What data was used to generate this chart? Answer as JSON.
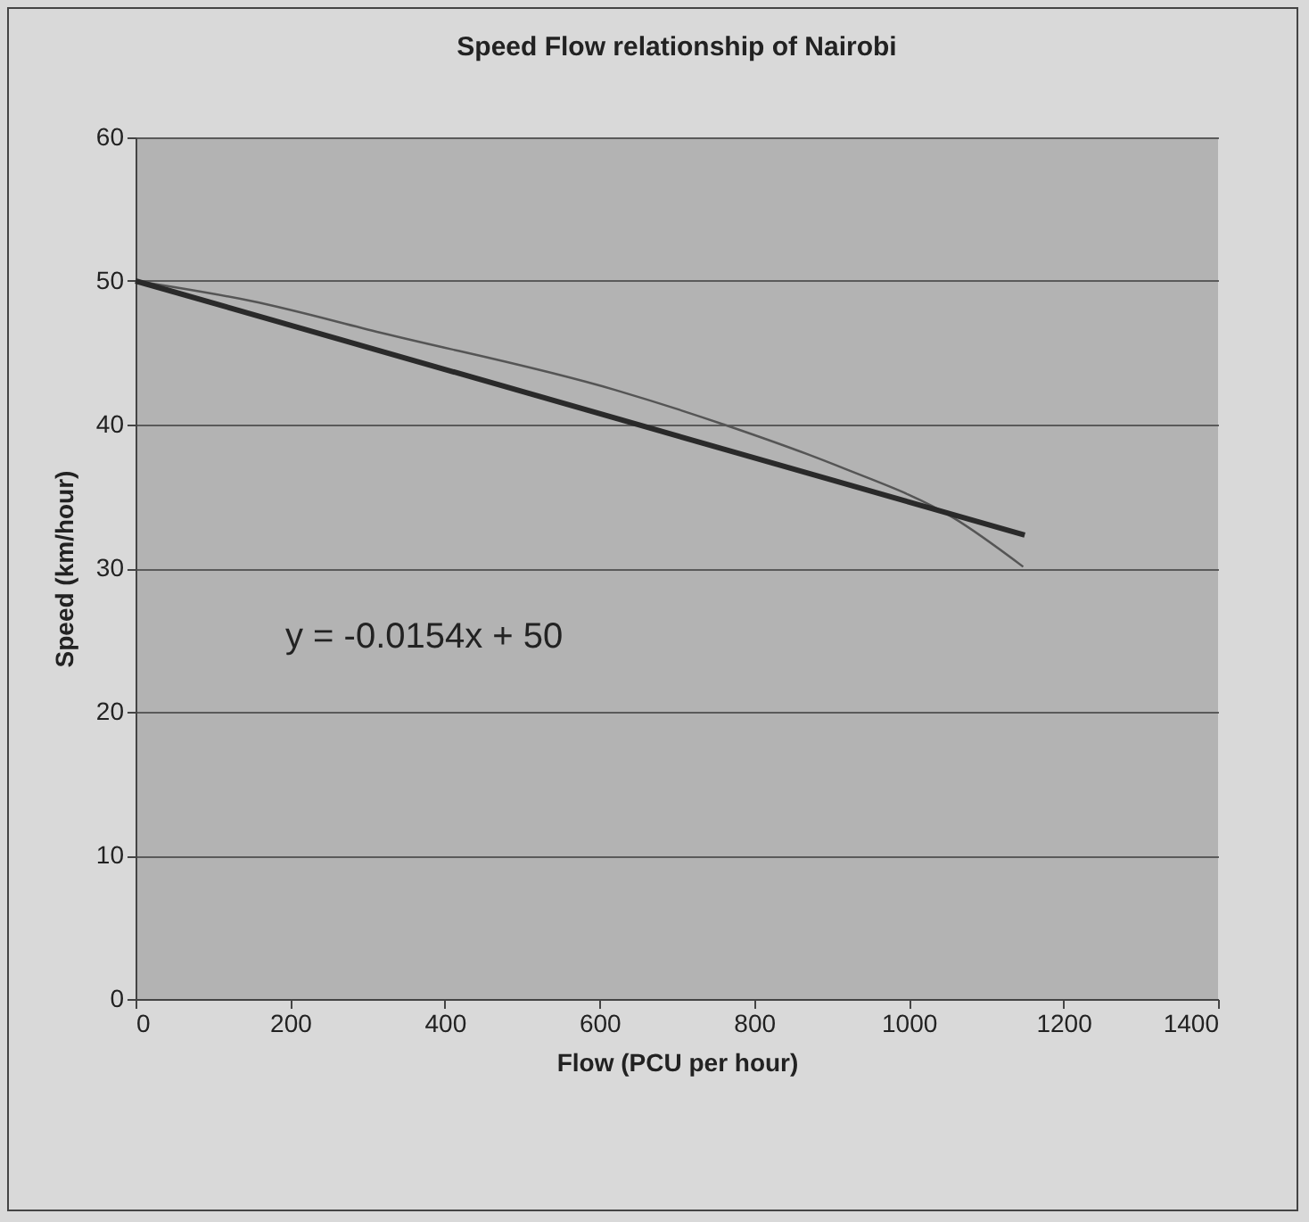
{
  "chart_data": {
    "type": "line",
    "title": "Speed Flow relationship of Nairobi",
    "xlabel": "Flow (PCU per hour)",
    "ylabel": "Speed (km/hour)",
    "xlim": [
      0,
      1400
    ],
    "xticks": [
      0,
      200,
      400,
      600,
      800,
      1000,
      1200,
      1400
    ],
    "ylim": [
      0,
      60
    ],
    "yticks": [
      0,
      10,
      20,
      30,
      40,
      50,
      60
    ],
    "grid": "y",
    "series": [
      {
        "color": "#555555",
        "x": [
          0,
          150,
          317,
          621,
          761,
          909,
          1058,
          1148
        ],
        "values": [
          50,
          48.6,
          46.4,
          42.4,
          40.0,
          37.1,
          33.5,
          30.1
        ]
      },
      {
        "color": "#2a2a2a",
        "x": [
          0,
          1150
        ],
        "values": [
          50,
          32.3
        ]
      }
    ],
    "annotations": [
      "y = -0.0154x + 50"
    ]
  }
}
